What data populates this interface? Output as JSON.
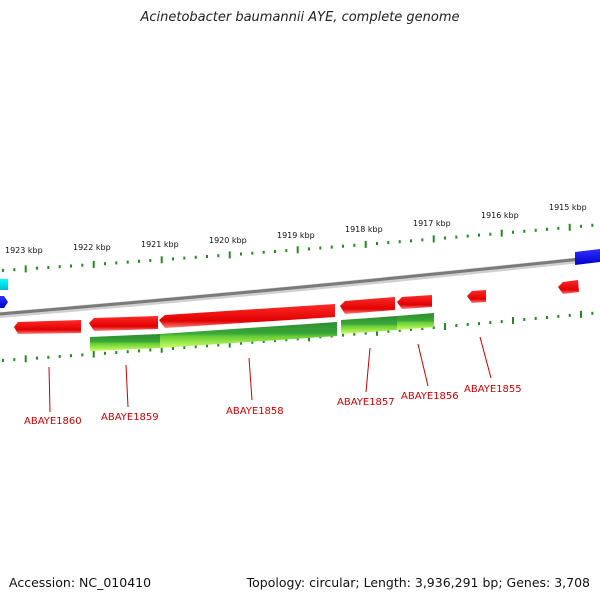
{
  "title": "Acinetobacter baumannii AYE, complete genome",
  "footer": {
    "accession": "Accession: NC_010410",
    "summary": "Topology: circular; Length: 3,936,291 bp; Genes: 3,708"
  },
  "scale_labels": [
    {
      "kbp": 1915,
      "text": "1915 kbp"
    },
    {
      "kbp": 1916,
      "text": "1916 kbp"
    },
    {
      "kbp": 1917,
      "text": "1917 kbp"
    },
    {
      "kbp": 1918,
      "text": "1918 kbp"
    },
    {
      "kbp": 1919,
      "text": "1919 kbp"
    },
    {
      "kbp": 1920,
      "text": "1920 kbp"
    },
    {
      "kbp": 1921,
      "text": "1921 kbp"
    },
    {
      "kbp": 1922,
      "text": "1922 kbp"
    },
    {
      "kbp": 1923,
      "text": "1923 kbp"
    }
  ],
  "gene_labels": [
    {
      "id": "ABAYE1860",
      "text": "ABAYE1860"
    },
    {
      "id": "ABAYE1859",
      "text": "ABAYE1859"
    },
    {
      "id": "ABAYE1858",
      "text": "ABAYE1858"
    },
    {
      "id": "ABAYE1857",
      "text": "ABAYE1857"
    },
    {
      "id": "ABAYE1856",
      "text": "ABAYE1856"
    },
    {
      "id": "ABAYE1855",
      "text": "ABAYE1855"
    }
  ],
  "colors": {
    "gene": "#ff0000",
    "cds": "#2e8b2e",
    "cds_light": "#99ee44",
    "backbone": "#888888",
    "tick": "#228b22",
    "other_feature": "#0000ff",
    "other_feature_2": "#00e5ee"
  }
}
